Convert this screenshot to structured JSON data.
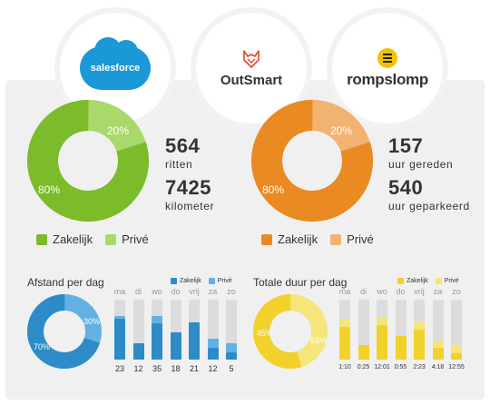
{
  "logos": {
    "salesforce": "salesforce",
    "outsmart": "OutSmart",
    "rompslomp": "rompslomp"
  },
  "left": {
    "donut": {
      "zakelijk_pct": 80,
      "prive_pct": 20,
      "zakelijk_label": "80%",
      "prive_label": "20%"
    },
    "stats": {
      "trips_value": "564",
      "trips_unit": "ritten",
      "km_value": "7425",
      "km_unit": "kilometer"
    },
    "legend": {
      "zakelijk": "Zakelijk",
      "prive": "Privé"
    },
    "colors": {
      "zakelijk": "#7cbb2a",
      "prive": "#a9d96a"
    }
  },
  "right": {
    "donut": {
      "zakelijk_pct": 80,
      "prive_pct": 20,
      "zakelijk_label": "80%",
      "prive_label": "20%"
    },
    "stats": {
      "driven_value": "157",
      "driven_unit": "uur gereden",
      "parked_value": "540",
      "parked_unit": "uur geparkeerd"
    },
    "legend": {
      "zakelijk": "Zakelijk",
      "prive": "Privé"
    },
    "colors": {
      "zakelijk": "#ea8a22",
      "prive": "#f2b271"
    }
  },
  "distance": {
    "title": "Afstand per dag",
    "legend": {
      "zakelijk": "Zakelijk",
      "prive": "Privé"
    },
    "donut": {
      "zakelijk_pct": 70,
      "prive_pct": 30,
      "zakelijk_label": "70%",
      "prive_label": "30%"
    },
    "days": [
      "ma",
      "di",
      "wo",
      "do",
      "vrij",
      "za",
      "zo"
    ],
    "values": [
      "23",
      "12",
      "35",
      "18",
      "21",
      "12",
      "5"
    ],
    "zakelijk_fraction": [
      0.68,
      0.28,
      0.6,
      0.45,
      0.62,
      0.2,
      0.12
    ],
    "prive_fraction": [
      0.05,
      0.0,
      0.12,
      0.0,
      0.0,
      0.15,
      0.15
    ],
    "colors": {
      "zakelijk": "#2d8bc8",
      "prive": "#63b1e4"
    }
  },
  "duration": {
    "title": "Totale duur per dag",
    "legend": {
      "zakelijk": "Zakelijk",
      "prive": "Privé"
    },
    "donut": {
      "zakelijk_pct": 55,
      "prive_pct": 45,
      "zakelijk_label": "55%",
      "prive_label": "45%"
    },
    "days": [
      "ma",
      "di",
      "wo",
      "do",
      "vrij",
      "za",
      "zo"
    ],
    "values": [
      "1:10",
      "0:25",
      "12:01",
      "0:55",
      "2:23",
      "4:18",
      "12:55"
    ],
    "zakelijk_fraction": [
      0.55,
      0.25,
      0.58,
      0.4,
      0.5,
      0.2,
      0.1
    ],
    "prive_fraction": [
      0.12,
      0.0,
      0.12,
      0.0,
      0.12,
      0.12,
      0.12
    ],
    "colors": {
      "zakelijk": "#f2d12a",
      "prive": "#f5e57a"
    }
  }
}
